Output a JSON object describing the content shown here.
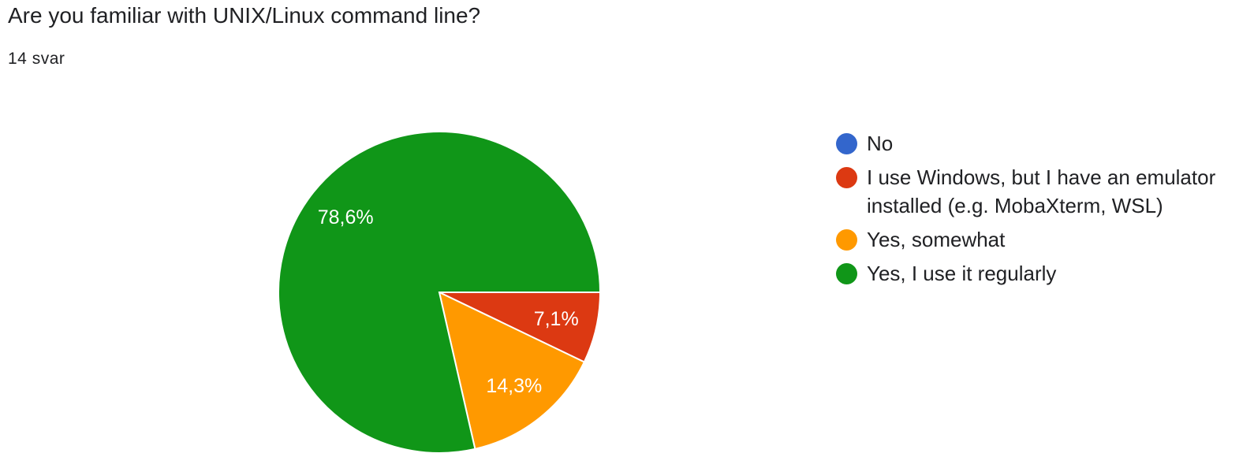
{
  "question": {
    "title": "Are you familiar with UNIX/Linux command line?",
    "response_count": "14 svar"
  },
  "chart_data": {
    "type": "pie",
    "total_responses": 14,
    "start_angle_deg": 90,
    "slices": [
      {
        "label": "No",
        "value": 0,
        "percent_label": "",
        "color": "#3366cc"
      },
      {
        "label": "I use Windows, but I have an emulator installed (e.g. MobaXterm, WSL)",
        "value": 1,
        "percent_label": "7,1%",
        "color": "#dc3912"
      },
      {
        "label": "Yes, somewhat",
        "value": 2,
        "percent_label": "14,3%",
        "color": "#ff9900"
      },
      {
        "label": "Yes, I use it regularly",
        "value": 11,
        "percent_label": "78,6%",
        "color": "#109618"
      }
    ]
  },
  "legend": {
    "items": [
      {
        "label": "No",
        "color": "#3366cc",
        "icon": "circle-swatch"
      },
      {
        "label": "I use Windows, but I have an emulator installed (e.g. MobaXterm, WSL)",
        "color": "#dc3912",
        "icon": "circle-swatch"
      },
      {
        "label": "Yes, somewhat",
        "color": "#ff9900",
        "icon": "circle-swatch"
      },
      {
        "label": "Yes, I use it regularly",
        "color": "#109618",
        "icon": "circle-swatch"
      }
    ]
  }
}
